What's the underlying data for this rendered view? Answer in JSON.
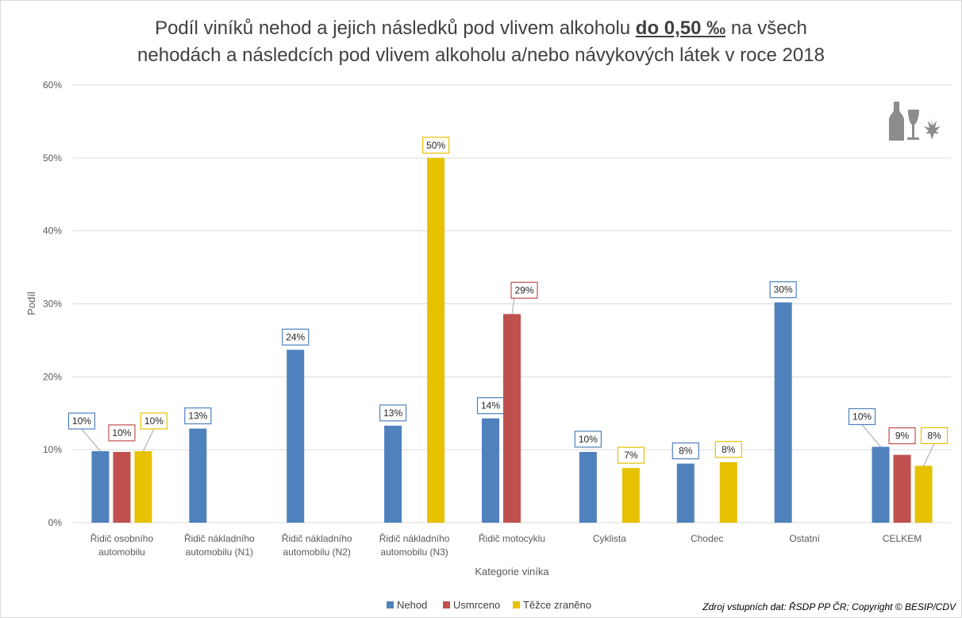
{
  "title": {
    "line1_prefix": "Podíl viníků nehod a jejich následků pod vlivem alkoholu ",
    "line1_em": "do 0,50 ‰",
    "line1_suffix": " na všech",
    "line2": "nehodách a následcích pod vlivem alkoholu a/nebo návykových látek v roce 2018"
  },
  "source": "Zdroj vstupních dat: ŘSDP PP ČR; Copyright © BESIP/CDV",
  "colors": {
    "Nehod": "#4f81bd",
    "Usmrceno": "#c0504d",
    "Těžce zraněno": "#e6c200"
  },
  "icon": "alcohol-drugs-icon",
  "chart_data": {
    "type": "bar",
    "xlabel": "Kategorie viníka",
    "ylabel": "Podíl",
    "ylim": [
      0,
      0.6
    ],
    "yticks": [
      "0%",
      "10%",
      "20%",
      "30%",
      "40%",
      "50%",
      "60%"
    ],
    "grid": true,
    "legend": "bottom",
    "categories": [
      [
        "Řidič osobního",
        "automobilu"
      ],
      [
        "Řidič nákladního",
        "automobilu (N1)"
      ],
      [
        "Řidič nákladního",
        "automobilu (N2)"
      ],
      [
        "Řidič nákladního",
        "automobilu (N3)"
      ],
      [
        "Řidič motocyklu"
      ],
      [
        "Cyklista"
      ],
      [
        "Chodec"
      ],
      [
        "Ostatní"
      ],
      [
        "CELKEM"
      ]
    ],
    "series": [
      {
        "name": "Nehod",
        "values": [
          0.098,
          0.129,
          0.237,
          0.133,
          0.143,
          0.097,
          0.081,
          0.302,
          0.104
        ],
        "labels": [
          "10%",
          "13%",
          "24%",
          "13%",
          "14%",
          "10%",
          "8%",
          "30%",
          "10%"
        ]
      },
      {
        "name": "Usmrceno",
        "values": [
          0.097,
          null,
          null,
          null,
          0.286,
          null,
          null,
          null,
          0.093
        ],
        "labels": [
          "10%",
          null,
          null,
          null,
          "29%",
          null,
          null,
          null,
          "9%"
        ]
      },
      {
        "name": "Těžce zraněno",
        "values": [
          0.098,
          null,
          null,
          0.5,
          null,
          0.075,
          0.083,
          null,
          0.078
        ],
        "labels": [
          "10%",
          null,
          null,
          "50%",
          null,
          "7%",
          "8%",
          null,
          "8%"
        ]
      }
    ]
  }
}
